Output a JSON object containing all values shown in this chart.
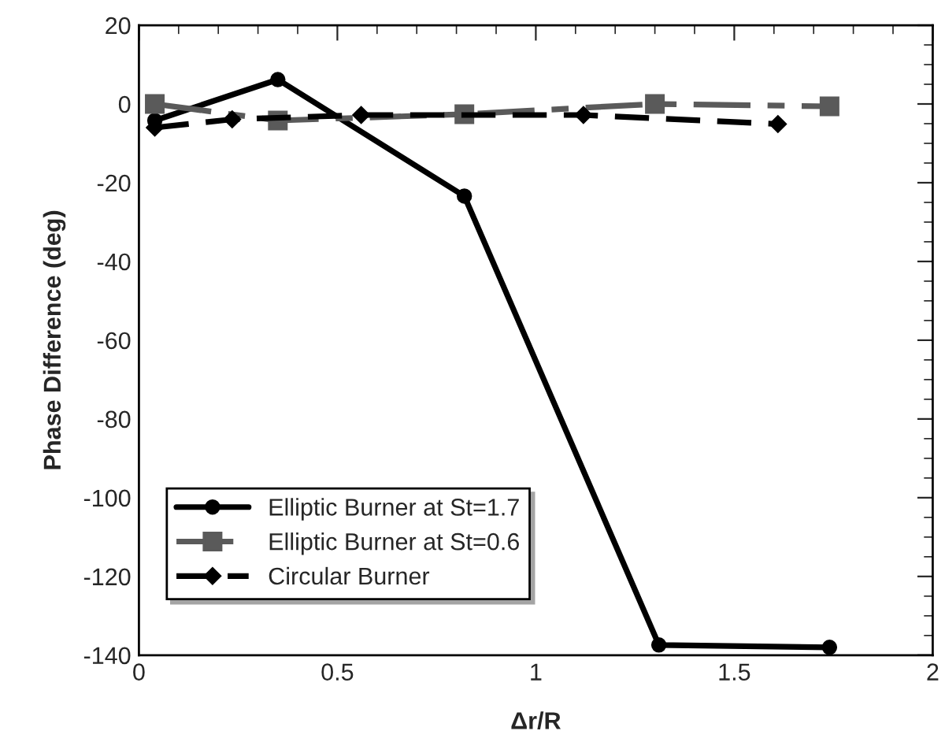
{
  "chart_data": {
    "type": "line",
    "xlabel": "Δr/R",
    "ylabel": "Phase Difference (deg)",
    "xlim": [
      0,
      2
    ],
    "xticks": [
      0,
      0.5,
      1,
      1.5,
      2
    ],
    "ylim": [
      -140,
      20
    ],
    "yticks": [
      -140,
      -120,
      -100,
      -80,
      -60,
      -40,
      -20,
      0,
      20
    ],
    "grid": false,
    "legend": "bottom left",
    "series": [
      {
        "name": "Elliptic Burner at St=1.7",
        "color": "#000000",
        "marker": "circle",
        "line_style": "solid",
        "x": [
          0.04,
          0.35,
          0.82,
          1.31,
          1.74
        ],
        "values": [
          -4.2,
          6.2,
          -23.4,
          -137.4,
          -138
        ]
      },
      {
        "name": "Elliptic Burner at St=0.6",
        "color": "#5a5a5a",
        "marker": "square",
        "line_style": "dashdot",
        "x": [
          0.04,
          0.35,
          0.82,
          1.3,
          1.74
        ],
        "values": [
          0,
          -4.2,
          -2.6,
          0,
          -0.6
        ]
      },
      {
        "name": "Circular Burner",
        "color": "#000000",
        "marker": "diamond",
        "line_style": "dashed",
        "x": [
          0.04,
          0.235,
          0.56,
          1.12,
          1.61
        ],
        "values": [
          -6,
          -3.9,
          -2.8,
          -2.8,
          -5.1
        ]
      }
    ]
  }
}
